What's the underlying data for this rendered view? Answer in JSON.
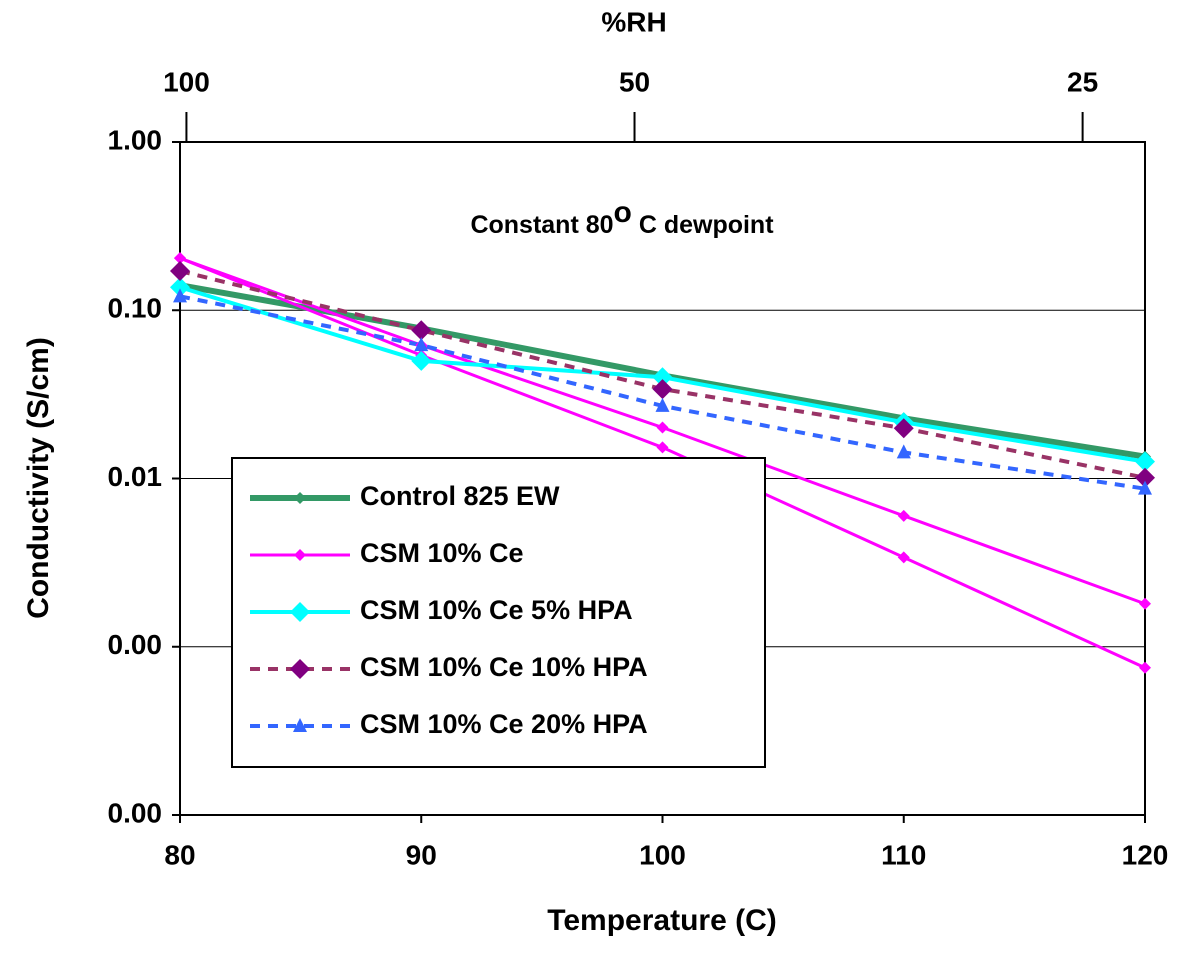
{
  "chart_data": {
    "type": "line",
    "xlabel": "Temperature (C)",
    "ylabel": "Conductivity (S/cm)",
    "x2label": "%RH",
    "annotation": [
      "Constant 80",
      "o",
      " C dewpoint"
    ],
    "x": [
      80,
      90,
      100,
      110,
      120
    ],
    "xlim": [
      80,
      120
    ],
    "xticks": [
      80,
      90,
      100,
      110,
      120
    ],
    "x2lim": [
      101,
      22.7
    ],
    "x2scale": "log",
    "x2ticks": [
      100,
      50,
      25
    ],
    "ylim": [
      0.0001,
      1
    ],
    "yscale": "log",
    "yticks": [
      {
        "value": 1,
        "label": "1.00"
      },
      {
        "value": 0.1,
        "label": "0.10"
      },
      {
        "value": 0.01,
        "label": "0.01"
      },
      {
        "value": 0.001,
        "label": "0.00"
      },
      {
        "value": 0.0001,
        "label": "0.00"
      }
    ],
    "grid": true,
    "legend": "lower left",
    "series": [
      {
        "name": "Control 825 EW",
        "color": "#339966",
        "marker": "diamond-small",
        "dash": false,
        "width": 6,
        "values": [
          0.141,
          0.078,
          0.041,
          0.0228,
          0.0135
        ]
      },
      {
        "name": "CSM 10% Ce",
        "color": "#ff00ff",
        "marker": "diamond-small",
        "dash": false,
        "width": 3,
        "values": [
          0.204,
          0.054,
          0.0153,
          0.0034,
          0.00075
        ]
      },
      {
        "name": "CSM 10% Ce",
        "color": "#ff00ff",
        "marker": "diamond-small",
        "dash": false,
        "width": 3,
        "legend": false,
        "values": [
          0.204,
          0.062,
          0.0201,
          0.006,
          0.0018
        ]
      },
      {
        "name": "CSM 10% Ce 5% HPA",
        "color": "#00ffff",
        "marker": "diamond-large",
        "dash": false,
        "width": 4,
        "values": [
          0.137,
          0.05,
          0.04,
          0.0216,
          0.0126
        ]
      },
      {
        "name": "CSM 10% Ce 10% HPA",
        "color": "#993366",
        "marker": "diamond-purple",
        "dash": true,
        "width": 4,
        "values": [
          0.171,
          0.076,
          0.034,
          0.0199,
          0.0101
        ]
      },
      {
        "name": "CSM 10% Ce 20% HPA",
        "color": "#3366ff",
        "marker": "triangle",
        "dash": true,
        "width": 4,
        "values": [
          0.121,
          0.062,
          0.027,
          0.0143,
          0.0087
        ]
      }
    ]
  }
}
